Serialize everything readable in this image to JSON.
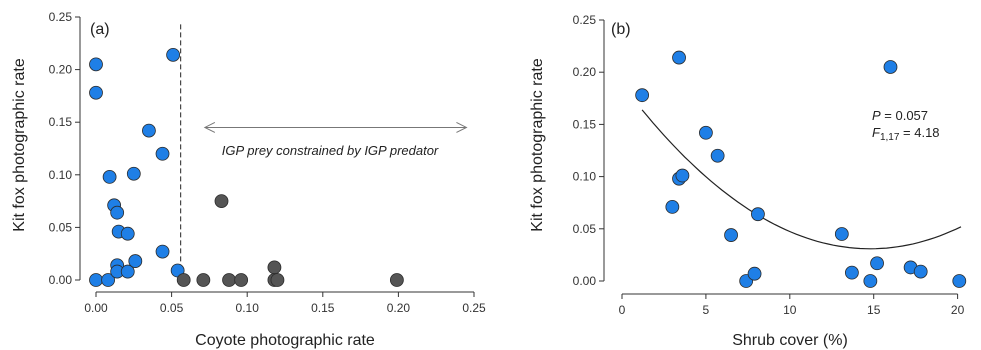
{
  "chart_data": [
    {
      "type": "scatter",
      "panel_label": "(a)",
      "xlabel": "Coyote photographic rate",
      "ylabel": "Kit fox photographic rate",
      "xlim": [
        0,
        0.25
      ],
      "ylim": [
        0,
        0.25
      ],
      "xticks": [
        "0.00",
        "0.05",
        "0.10",
        "0.15",
        "0.20",
        "0.25"
      ],
      "yticks": [
        "0.00",
        "0.05",
        "0.10",
        "0.15",
        "0.20",
        "0.25"
      ],
      "threshold_x": 0.056,
      "annotation": "IGP prey constrained by IGP predator",
      "annotation_arrow": {
        "from": 0.072,
        "to": 0.245,
        "y": 0.145
      },
      "colors": {
        "blue": "#1f7fe6",
        "dark": "#555555"
      },
      "series": [
        {
          "color": "blue",
          "points": [
            [
              0.0,
              0.205
            ],
            [
              0.0,
              0.178
            ],
            [
              0.0,
              0.0
            ],
            [
              0.008,
              0.0
            ],
            [
              0.009,
              0.098
            ],
            [
              0.012,
              0.071
            ],
            [
              0.014,
              0.064
            ],
            [
              0.015,
              0.046
            ],
            [
              0.014,
              0.014
            ],
            [
              0.014,
              0.008
            ],
            [
              0.021,
              0.044
            ],
            [
              0.021,
              0.008
            ],
            [
              0.025,
              0.101
            ],
            [
              0.026,
              0.018
            ],
            [
              0.035,
              0.142
            ],
            [
              0.044,
              0.12
            ],
            [
              0.044,
              0.027
            ],
            [
              0.051,
              0.214
            ],
            [
              0.054,
              0.009
            ]
          ]
        },
        {
          "color": "dark",
          "points": [
            [
              0.058,
              0.0
            ],
            [
              0.071,
              0.0
            ],
            [
              0.083,
              0.075
            ],
            [
              0.088,
              0.0
            ],
            [
              0.096,
              0.0
            ],
            [
              0.118,
              0.012
            ],
            [
              0.118,
              0.0
            ],
            [
              0.12,
              0.0
            ],
            [
              0.199,
              0.0
            ]
          ]
        }
      ]
    },
    {
      "type": "scatter",
      "panel_label": "(b)",
      "xlabel": "Shrub cover (%)",
      "ylabel": "Kit fox photographic rate",
      "xlim": [
        0,
        20.5
      ],
      "ylim": [
        0,
        0.25
      ],
      "xticks": [
        "0",
        "5",
        "10",
        "15",
        "20"
      ],
      "yticks": [
        "0.00",
        "0.05",
        "0.10",
        "0.15",
        "0.20",
        "0.25"
      ],
      "stats": {
        "p_label": "P",
        "p_text": " = 0.057",
        "f_label": "F",
        "f_sub": "1,17",
        "f_text": " = 4.18"
      },
      "fit": {
        "type": "quadratic",
        "x_range": [
          1.2,
          20.2
        ],
        "coef": [
          0.1884,
          -0.0213,
          0.00072
        ]
      },
      "colors": {
        "blue": "#1f7fe6"
      },
      "series": [
        {
          "color": "blue",
          "points": [
            [
              1.2,
              0.178
            ],
            [
              3.0,
              0.071
            ],
            [
              3.4,
              0.214
            ],
            [
              3.4,
              0.098
            ],
            [
              3.6,
              0.101
            ],
            [
              5.0,
              0.142
            ],
            [
              5.7,
              0.12
            ],
            [
              6.5,
              0.044
            ],
            [
              7.4,
              0.0
            ],
            [
              7.9,
              0.007
            ],
            [
              8.1,
              0.064
            ],
            [
              13.1,
              0.045
            ],
            [
              13.7,
              0.008
            ],
            [
              14.8,
              0.0
            ],
            [
              15.2,
              0.017
            ],
            [
              16.0,
              0.205
            ],
            [
              17.2,
              0.013
            ],
            [
              17.8,
              0.009
            ],
            [
              20.1,
              0.0
            ]
          ]
        }
      ]
    }
  ]
}
